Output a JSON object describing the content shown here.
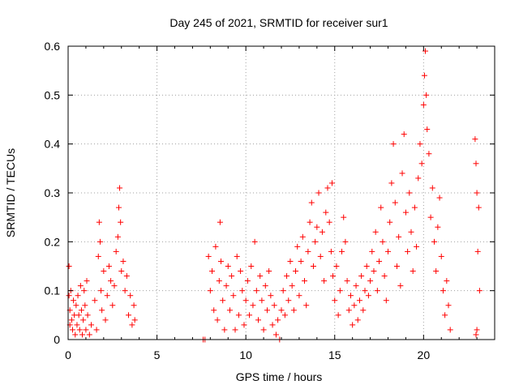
{
  "chart_data": {
    "type": "scatter",
    "title": "Day 245 of 2021, SRMTID for receiver sur1",
    "xlabel": "GPS time / hours",
    "ylabel": "SRMTID / TECUs",
    "xlim": [
      0,
      24
    ],
    "ylim": [
      0,
      0.6
    ],
    "xticks": [
      0,
      5,
      10,
      15,
      20
    ],
    "yticks": [
      0,
      0.1,
      0.2,
      0.3,
      0.4,
      0.5,
      0.6
    ],
    "xtick_labels": [
      "0",
      "5",
      "10",
      "15",
      "20"
    ],
    "ytick_labels": [
      "0",
      "0.1",
      "0.2",
      "0.3",
      "0.4",
      "0.5",
      "0.6"
    ],
    "grid": true,
    "marker": "+",
    "marker_color": "#ff0000",
    "series": [
      {
        "name": "sur1",
        "points": [
          [
            0.05,
            0.15
          ],
          [
            0.05,
            0.09
          ],
          [
            0.1,
            0.06
          ],
          [
            0.1,
            0.03
          ],
          [
            0.15,
            0.1
          ],
          [
            0.2,
            0.04
          ],
          [
            0.25,
            0.02
          ],
          [
            0.3,
            0.08
          ],
          [
            0.35,
            0.05
          ],
          [
            0.4,
            0.01
          ],
          [
            0.45,
            0.07
          ],
          [
            0.5,
            0.03
          ],
          [
            0.55,
            0.09
          ],
          [
            0.6,
            0.05
          ],
          [
            0.65,
            0.02
          ],
          [
            0.7,
            0.11
          ],
          [
            0.75,
            0.06
          ],
          [
            0.8,
            0.01
          ],
          [
            0.85,
            0.04
          ],
          [
            0.9,
            0.1
          ],
          [
            0.95,
            0.07
          ],
          [
            1.0,
            0.02
          ],
          [
            1.05,
            0.12
          ],
          [
            1.1,
            0.05
          ],
          [
            1.2,
            0.01
          ],
          [
            1.3,
            0.03
          ],
          [
            1.5,
            0.08
          ],
          [
            1.6,
            0.02
          ],
          [
            1.7,
            0.17
          ],
          [
            1.75,
            0.24
          ],
          [
            1.8,
            0.2
          ],
          [
            1.85,
            0.1
          ],
          [
            1.9,
            0.06
          ],
          [
            2.0,
            0.14
          ],
          [
            2.1,
            0.04
          ],
          [
            2.2,
            0.09
          ],
          [
            2.3,
            0.15
          ],
          [
            2.4,
            0.12
          ],
          [
            2.5,
            0.07
          ],
          [
            2.6,
            0.11
          ],
          [
            2.7,
            0.18
          ],
          [
            2.8,
            0.21
          ],
          [
            2.85,
            0.27
          ],
          [
            2.9,
            0.31
          ],
          [
            2.95,
            0.24
          ],
          [
            3.0,
            0.14
          ],
          [
            3.1,
            0.16
          ],
          [
            3.2,
            0.1
          ],
          [
            3.3,
            0.13
          ],
          [
            3.4,
            0.05
          ],
          [
            3.5,
            0.09
          ],
          [
            3.6,
            0.03
          ],
          [
            3.7,
            0.07
          ],
          [
            3.75,
            0.04
          ],
          [
            7.6,
            0.0
          ],
          [
            7.7,
            0.0
          ],
          [
            7.9,
            0.17
          ],
          [
            8.0,
            0.1
          ],
          [
            8.1,
            0.14
          ],
          [
            8.2,
            0.06
          ],
          [
            8.3,
            0.19
          ],
          [
            8.4,
            0.04
          ],
          [
            8.5,
            0.12
          ],
          [
            8.55,
            0.24
          ],
          [
            8.6,
            0.16
          ],
          [
            8.7,
            0.08
          ],
          [
            8.8,
            0.02
          ],
          [
            8.9,
            0.11
          ],
          [
            9.0,
            0.15
          ],
          [
            9.1,
            0.06
          ],
          [
            9.2,
            0.13
          ],
          [
            9.3,
            0.09
          ],
          [
            9.4,
            0.02
          ],
          [
            9.5,
            0.17
          ],
          [
            9.6,
            0.05
          ],
          [
            9.7,
            0.14
          ],
          [
            9.8,
            0.1
          ],
          [
            9.9,
            0.03
          ],
          [
            10.0,
            0.08
          ],
          [
            10.1,
            0.12
          ],
          [
            10.2,
            0.05
          ],
          [
            10.3,
            0.15
          ],
          [
            10.4,
            0.07
          ],
          [
            10.5,
            0.2
          ],
          [
            10.6,
            0.1
          ],
          [
            10.7,
            0.04
          ],
          [
            10.8,
            0.13
          ],
          [
            10.9,
            0.08
          ],
          [
            11.0,
            0.02
          ],
          [
            11.1,
            0.11
          ],
          [
            11.2,
            0.06
          ],
          [
            11.3,
            0.14
          ],
          [
            11.4,
            0.09
          ],
          [
            11.5,
            0.03
          ],
          [
            11.6,
            0.07
          ],
          [
            11.7,
            0.01
          ],
          [
            11.8,
            0.04
          ],
          [
            11.9,
            0.0
          ],
          [
            12.0,
            0.06
          ],
          [
            12.1,
            0.1
          ],
          [
            12.2,
            0.05
          ],
          [
            12.3,
            0.13
          ],
          [
            12.4,
            0.08
          ],
          [
            12.5,
            0.16
          ],
          [
            12.6,
            0.11
          ],
          [
            12.7,
            0.06
          ],
          [
            12.8,
            0.14
          ],
          [
            12.9,
            0.19
          ],
          [
            13.0,
            0.09
          ],
          [
            13.1,
            0.16
          ],
          [
            13.2,
            0.21
          ],
          [
            13.3,
            0.12
          ],
          [
            13.4,
            0.07
          ],
          [
            13.5,
            0.18
          ],
          [
            13.6,
            0.24
          ],
          [
            13.7,
            0.28
          ],
          [
            13.8,
            0.15
          ],
          [
            13.9,
            0.2
          ],
          [
            14.0,
            0.23
          ],
          [
            14.1,
            0.3
          ],
          [
            14.2,
            0.17
          ],
          [
            14.3,
            0.22
          ],
          [
            14.4,
            0.12
          ],
          [
            14.5,
            0.26
          ],
          [
            14.6,
            0.31
          ],
          [
            14.7,
            0.24
          ],
          [
            14.8,
            0.18
          ],
          [
            14.85,
            0.32
          ],
          [
            14.9,
            0.13
          ],
          [
            15.0,
            0.08
          ],
          [
            15.1,
            0.15
          ],
          [
            15.2,
            0.05
          ],
          [
            15.3,
            0.1
          ],
          [
            15.4,
            0.18
          ],
          [
            15.5,
            0.25
          ],
          [
            15.6,
            0.2
          ],
          [
            15.7,
            0.12
          ],
          [
            15.8,
            0.06
          ],
          [
            15.9,
            0.09
          ],
          [
            16.0,
            0.03
          ],
          [
            16.1,
            0.07
          ],
          [
            16.2,
            0.11
          ],
          [
            16.3,
            0.04
          ],
          [
            16.4,
            0.08
          ],
          [
            16.5,
            0.13
          ],
          [
            16.6,
            0.06
          ],
          [
            16.7,
            0.1
          ],
          [
            16.8,
            0.15
          ],
          [
            16.9,
            0.09
          ],
          [
            17.0,
            0.12
          ],
          [
            17.1,
            0.18
          ],
          [
            17.2,
            0.14
          ],
          [
            17.3,
            0.22
          ],
          [
            17.4,
            0.1
          ],
          [
            17.5,
            0.16
          ],
          [
            17.6,
            0.27
          ],
          [
            17.7,
            0.2
          ],
          [
            17.8,
            0.13
          ],
          [
            17.9,
            0.08
          ],
          [
            18.0,
            0.18
          ],
          [
            18.1,
            0.24
          ],
          [
            18.2,
            0.32
          ],
          [
            18.3,
            0.4
          ],
          [
            18.4,
            0.28
          ],
          [
            18.5,
            0.15
          ],
          [
            18.6,
            0.21
          ],
          [
            18.7,
            0.11
          ],
          [
            18.8,
            0.34
          ],
          [
            18.9,
            0.42
          ],
          [
            19.0,
            0.26
          ],
          [
            19.1,
            0.18
          ],
          [
            19.2,
            0.3
          ],
          [
            19.3,
            0.22
          ],
          [
            19.4,
            0.14
          ],
          [
            19.5,
            0.27
          ],
          [
            19.6,
            0.19
          ],
          [
            19.7,
            0.33
          ],
          [
            19.8,
            0.4
          ],
          [
            19.9,
            0.36
          ],
          [
            20.0,
            0.48
          ],
          [
            20.05,
            0.54
          ],
          [
            20.1,
            0.59
          ],
          [
            20.15,
            0.5
          ],
          [
            20.2,
            0.43
          ],
          [
            20.3,
            0.38
          ],
          [
            20.4,
            0.25
          ],
          [
            20.5,
            0.31
          ],
          [
            20.6,
            0.2
          ],
          [
            20.7,
            0.14
          ],
          [
            20.8,
            0.23
          ],
          [
            20.9,
            0.29
          ],
          [
            21.0,
            0.17
          ],
          [
            21.1,
            0.1
          ],
          [
            21.2,
            0.05
          ],
          [
            21.3,
            0.12
          ],
          [
            21.4,
            0.07
          ],
          [
            21.5,
            0.02
          ],
          [
            22.9,
            0.41
          ],
          [
            22.95,
            0.36
          ],
          [
            23.0,
            0.3
          ],
          [
            23.05,
            0.18
          ],
          [
            23.1,
            0.27
          ],
          [
            23.15,
            0.1
          ],
          [
            23.0,
            0.02
          ],
          [
            22.95,
            0.01
          ]
        ]
      }
    ]
  }
}
